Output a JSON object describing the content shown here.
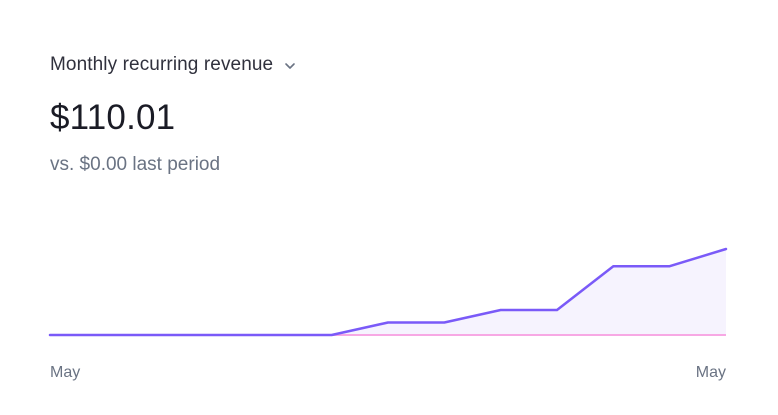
{
  "metric": {
    "title": "Monthly recurring revenue",
    "value": "$110.01",
    "comparison": "vs. $0.00 last period"
  },
  "icons": {
    "dropdown": "chevron-down-icon"
  },
  "colors": {
    "current_series": "#7a5af8",
    "current_area": "#f6f3fe",
    "previous_series": "#f7a8e4",
    "axis_text": "#6a7383"
  },
  "chart_data": {
    "type": "line",
    "title": "",
    "xlabel": "",
    "ylabel": "",
    "x_tick_labels": [
      "May",
      "May"
    ],
    "ylim": [
      0,
      110.01
    ],
    "grid": false,
    "series": [
      {
        "values": [
          0,
          0,
          0,
          0,
          0,
          0,
          16,
          16,
          32,
          32,
          88,
          88,
          110.01
        ],
        "area": true
      },
      {
        "values": [
          0,
          0,
          0,
          0,
          0,
          0,
          0,
          0,
          0,
          0,
          0,
          0,
          0
        ]
      }
    ]
  }
}
